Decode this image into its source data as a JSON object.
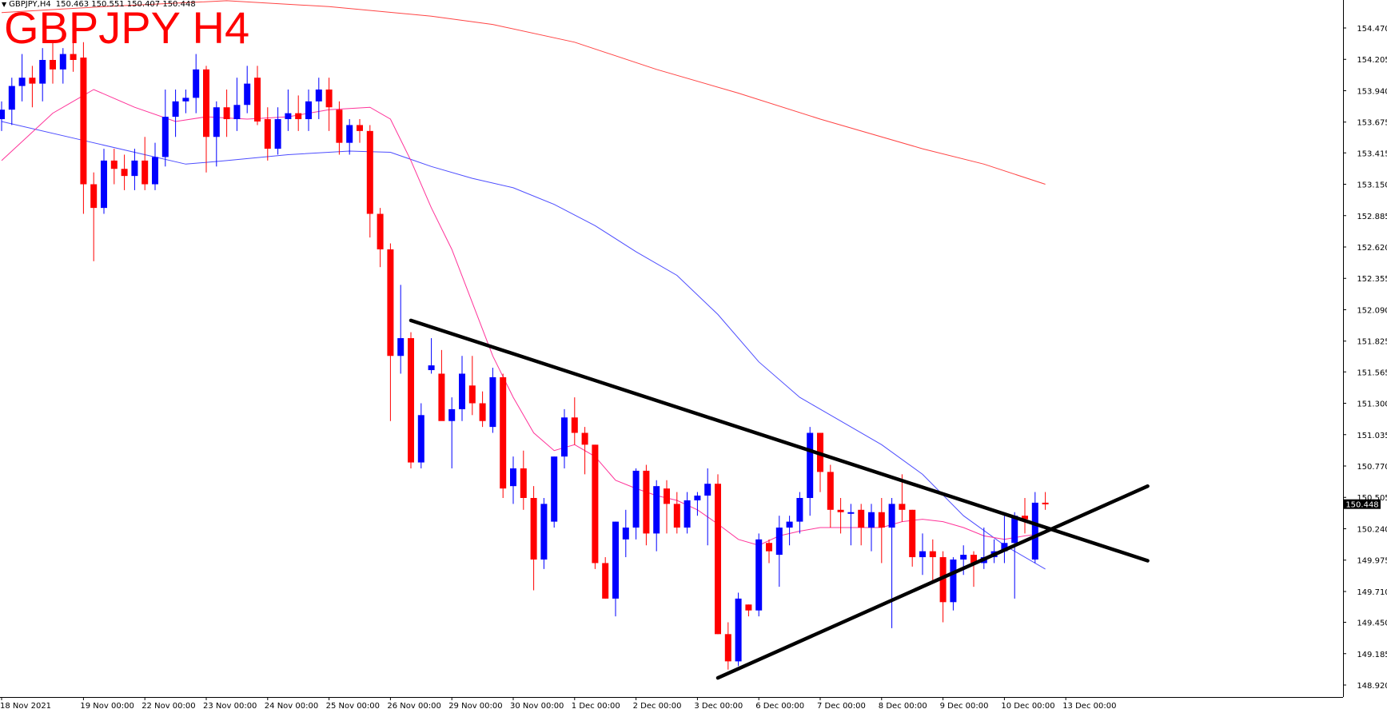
{
  "header": {
    "symbol_tf": "GBPJPY,H4",
    "ohlc": "150.463 150.551 150.407 150.448",
    "title": "GBPJPY H4"
  },
  "colors": {
    "bull": "#0000ff",
    "bear": "#ff0000",
    "ma_fast": "#ff3399",
    "ma_mid": "#4d4dff",
    "ma_slow": "#ff4444",
    "trendline": "#000000",
    "price_tag_bg": "#000000"
  },
  "chart_data": {
    "type": "candlestick",
    "title": "GBPJPY H4",
    "ylim": [
      148.8,
      154.6
    ],
    "current_price": "150.448",
    "y_ticks": [
      "154.470",
      "154.205",
      "153.940",
      "153.675",
      "153.415",
      "153.150",
      "152.885",
      "152.620",
      "152.355",
      "152.090",
      "151.825",
      "151.565",
      "151.300",
      "151.035",
      "150.770",
      "150.505",
      "150.240",
      "149.975",
      "149.710",
      "149.450",
      "149.185",
      "148.920"
    ],
    "x_ticks": [
      {
        "label": "18 Nov 2021",
        "bar": 0
      },
      {
        "label": "19 Nov 00:00",
        "bar": 8
      },
      {
        "label": "22 Nov 00:00",
        "bar": 14
      },
      {
        "label": "23 Nov 00:00",
        "bar": 20
      },
      {
        "label": "24 Nov 00:00",
        "bar": 26
      },
      {
        "label": "25 Nov 00:00",
        "bar": 32
      },
      {
        "label": "26 Nov 00:00",
        "bar": 38
      },
      {
        "label": "29 Nov 00:00",
        "bar": 44
      },
      {
        "label": "30 Nov 00:00",
        "bar": 50
      },
      {
        "label": "1 Dec 00:00",
        "bar": 56
      },
      {
        "label": "2 Dec 00:00",
        "bar": 62
      },
      {
        "label": "3 Dec 00:00",
        "bar": 68
      },
      {
        "label": "6 Dec 00:00",
        "bar": 74
      },
      {
        "label": "7 Dec 00:00",
        "bar": 80
      },
      {
        "label": "8 Dec 00:00",
        "bar": 86
      },
      {
        "label": "9 Dec 00:00",
        "bar": 92
      },
      {
        "label": "10 Dec 00:00",
        "bar": 98
      },
      {
        "label": "13 Dec 00:00",
        "bar": 104
      }
    ],
    "candles": [
      [
        153.7,
        153.85,
        153.6,
        153.78
      ],
      [
        153.78,
        154.05,
        153.65,
        153.98
      ],
      [
        153.98,
        154.25,
        153.85,
        154.05
      ],
      [
        154.05,
        154.15,
        153.8,
        154.0
      ],
      [
        154.0,
        154.3,
        153.85,
        154.2
      ],
      [
        154.2,
        154.35,
        154.0,
        154.12
      ],
      [
        154.12,
        154.3,
        154.0,
        154.25
      ],
      [
        154.25,
        154.4,
        154.1,
        154.2
      ],
      [
        154.22,
        154.35,
        152.9,
        153.15
      ],
      [
        153.15,
        153.25,
        152.5,
        152.95
      ],
      [
        152.95,
        153.45,
        152.9,
        153.35
      ],
      [
        153.35,
        153.45,
        153.15,
        153.28
      ],
      [
        153.28,
        153.4,
        153.1,
        153.22
      ],
      [
        153.22,
        153.45,
        153.1,
        153.35
      ],
      [
        153.35,
        153.55,
        153.1,
        153.15
      ],
      [
        153.15,
        153.5,
        153.1,
        153.38
      ],
      [
        153.38,
        153.95,
        153.3,
        153.72
      ],
      [
        153.72,
        153.95,
        153.55,
        153.85
      ],
      [
        153.85,
        153.95,
        153.75,
        153.88
      ],
      [
        153.88,
        154.25,
        153.75,
        154.12
      ],
      [
        154.12,
        154.15,
        153.25,
        153.55
      ],
      [
        153.55,
        153.85,
        153.3,
        153.8
      ],
      [
        153.8,
        153.95,
        153.55,
        153.7
      ],
      [
        153.7,
        154.05,
        153.6,
        153.82
      ],
      [
        153.82,
        154.15,
        153.75,
        154.0
      ],
      [
        154.05,
        154.15,
        153.65,
        153.68
      ],
      [
        153.7,
        153.8,
        153.35,
        153.45
      ],
      [
        153.45,
        153.8,
        153.4,
        153.7
      ],
      [
        153.7,
        153.95,
        153.6,
        153.75
      ],
      [
        153.75,
        153.9,
        153.6,
        153.7
      ],
      [
        153.7,
        153.95,
        153.6,
        153.85
      ],
      [
        153.85,
        154.05,
        153.7,
        153.95
      ],
      [
        153.95,
        154.05,
        153.6,
        153.8
      ],
      [
        153.78,
        153.85,
        153.4,
        153.5
      ],
      [
        153.5,
        153.7,
        153.4,
        153.65
      ],
      [
        153.65,
        153.7,
        153.5,
        153.6
      ],
      [
        153.6,
        153.65,
        152.7,
        152.9
      ],
      [
        152.9,
        152.95,
        152.45,
        152.6
      ],
      [
        152.6,
        152.65,
        151.15,
        151.7
      ],
      [
        151.7,
        152.3,
        151.55,
        151.85
      ],
      [
        151.85,
        151.9,
        150.75,
        150.8
      ],
      [
        150.8,
        151.3,
        150.75,
        151.2
      ],
      [
        151.58,
        151.85,
        151.55,
        151.62
      ],
      [
        151.55,
        151.75,
        151.2,
        151.15
      ],
      [
        151.15,
        151.35,
        150.75,
        151.25
      ],
      [
        151.25,
        151.7,
        151.15,
        151.55
      ],
      [
        151.45,
        151.7,
        151.2,
        151.3
      ],
      [
        151.3,
        151.4,
        151.1,
        151.15
      ],
      [
        151.1,
        151.6,
        151.05,
        151.52
      ],
      [
        151.52,
        151.55,
        150.5,
        150.58
      ],
      [
        150.6,
        150.85,
        150.45,
        150.75
      ],
      [
        150.75,
        150.9,
        150.4,
        150.5
      ],
      [
        150.5,
        150.6,
        149.72,
        149.98
      ],
      [
        149.98,
        150.5,
        149.9,
        150.45
      ],
      [
        150.3,
        150.85,
        150.25,
        150.85
      ],
      [
        150.85,
        151.25,
        150.75,
        151.18
      ],
      [
        151.18,
        151.35,
        150.95,
        151.05
      ],
      [
        151.05,
        151.1,
        150.7,
        150.95
      ],
      [
        150.95,
        150.95,
        149.9,
        149.95
      ],
      [
        149.95,
        150.0,
        149.65,
        149.65
      ],
      [
        149.65,
        150.3,
        149.5,
        150.3
      ],
      [
        150.15,
        150.4,
        150.0,
        150.25
      ],
      [
        150.25,
        150.75,
        150.15,
        150.73
      ],
      [
        150.73,
        150.78,
        150.1,
        150.2
      ],
      [
        150.2,
        150.65,
        150.05,
        150.6
      ],
      [
        150.58,
        150.65,
        150.2,
        150.45
      ],
      [
        150.45,
        150.55,
        150.2,
        150.25
      ],
      [
        150.25,
        150.55,
        150.2,
        150.48
      ],
      [
        150.48,
        150.55,
        150.35,
        150.52
      ],
      [
        150.52,
        150.75,
        150.1,
        150.62
      ],
      [
        150.62,
        150.7,
        149.35,
        149.35
      ],
      [
        149.35,
        149.45,
        149.05,
        149.12
      ],
      [
        149.12,
        149.7,
        149.08,
        149.65
      ],
      [
        149.6,
        149.6,
        149.5,
        149.55
      ],
      [
        149.55,
        150.2,
        149.5,
        150.15
      ],
      [
        150.12,
        150.15,
        149.95,
        150.05
      ],
      [
        150.02,
        150.35,
        149.75,
        150.25
      ],
      [
        150.25,
        150.35,
        150.1,
        150.3
      ],
      [
        150.3,
        150.55,
        150.2,
        150.5
      ],
      [
        150.5,
        151.1,
        150.35,
        151.05
      ],
      [
        151.05,
        151.05,
        150.55,
        150.72
      ],
      [
        150.72,
        150.78,
        150.25,
        150.4
      ],
      [
        150.4,
        150.5,
        150.2,
        150.38
      ],
      [
        150.38,
        150.45,
        150.1,
        150.38
      ],
      [
        150.4,
        150.45,
        150.1,
        150.25
      ],
      [
        150.25,
        150.45,
        150.05,
        150.38
      ],
      [
        150.38,
        150.5,
        149.95,
        150.25
      ],
      [
        150.25,
        150.5,
        149.4,
        150.45
      ],
      [
        150.45,
        150.7,
        150.3,
        150.4
      ],
      [
        150.4,
        150.4,
        149.92,
        150.0
      ],
      [
        150.0,
        150.2,
        149.85,
        150.05
      ],
      [
        150.05,
        150.15,
        149.8,
        150.0
      ],
      [
        150.0,
        150.05,
        149.45,
        149.62
      ],
      [
        149.62,
        150.0,
        149.55,
        149.98
      ],
      [
        149.98,
        150.1,
        149.85,
        150.02
      ],
      [
        150.02,
        150.05,
        149.75,
        149.95
      ],
      [
        149.95,
        150.25,
        149.9,
        150.0
      ],
      [
        150.0,
        150.15,
        149.95,
        150.05
      ],
      [
        150.05,
        150.35,
        149.95,
        150.12
      ],
      [
        150.12,
        150.38,
        149.65,
        150.35
      ],
      [
        150.35,
        150.5,
        150.2,
        150.32
      ],
      [
        149.98,
        150.55,
        149.95,
        150.46
      ],
      [
        150.46,
        150.55,
        150.4,
        150.448
      ]
    ],
    "ma_fast": [
      [
        0,
        153.35
      ],
      [
        5,
        153.75
      ],
      [
        9,
        153.95
      ],
      [
        13,
        153.8
      ],
      [
        17,
        153.68
      ],
      [
        20,
        153.72
      ],
      [
        24,
        153.7
      ],
      [
        28,
        153.72
      ],
      [
        32,
        153.78
      ],
      [
        36,
        153.8
      ],
      [
        38,
        153.7
      ],
      [
        40,
        153.35
      ],
      [
        42,
        152.95
      ],
      [
        44,
        152.6
      ],
      [
        46,
        152.15
      ],
      [
        48,
        151.7
      ],
      [
        50,
        151.35
      ],
      [
        52,
        151.05
      ],
      [
        54,
        150.9
      ],
      [
        56,
        150.95
      ],
      [
        58,
        150.85
      ],
      [
        60,
        150.65
      ],
      [
        62,
        150.58
      ],
      [
        64,
        150.52
      ],
      [
        66,
        150.48
      ],
      [
        68,
        150.4
      ],
      [
        70,
        150.28
      ],
      [
        72,
        150.15
      ],
      [
        74,
        150.1
      ],
      [
        76,
        150.18
      ],
      [
        78,
        150.22
      ],
      [
        80,
        150.25
      ],
      [
        82,
        150.25
      ],
      [
        84,
        150.25
      ],
      [
        86,
        150.25
      ],
      [
        88,
        150.3
      ],
      [
        90,
        150.32
      ],
      [
        92,
        150.3
      ],
      [
        94,
        150.25
      ],
      [
        96,
        150.18
      ],
      [
        98,
        150.15
      ],
      [
        100,
        150.18
      ],
      [
        102,
        150.2
      ]
    ],
    "ma_mid": [
      [
        0,
        153.68
      ],
      [
        8,
        153.52
      ],
      [
        14,
        153.4
      ],
      [
        18,
        153.32
      ],
      [
        22,
        153.35
      ],
      [
        28,
        153.4
      ],
      [
        34,
        153.43
      ],
      [
        38,
        153.42
      ],
      [
        42,
        153.3
      ],
      [
        46,
        153.2
      ],
      [
        50,
        153.12
      ],
      [
        54,
        152.98
      ],
      [
        58,
        152.8
      ],
      [
        62,
        152.58
      ],
      [
        66,
        152.38
      ],
      [
        70,
        152.05
      ],
      [
        74,
        151.65
      ],
      [
        78,
        151.35
      ],
      [
        82,
        151.15
      ],
      [
        86,
        150.95
      ],
      [
        90,
        150.7
      ],
      [
        94,
        150.35
      ],
      [
        98,
        150.1
      ],
      [
        102,
        149.9
      ]
    ],
    "ma_slow": [
      [
        0,
        154.6
      ],
      [
        10,
        154.65
      ],
      [
        22,
        154.7
      ],
      [
        32,
        154.65
      ],
      [
        42,
        154.57
      ],
      [
        48,
        154.5
      ],
      [
        56,
        154.35
      ],
      [
        64,
        154.12
      ],
      [
        72,
        153.92
      ],
      [
        80,
        153.7
      ],
      [
        90,
        153.45
      ],
      [
        96,
        153.32
      ],
      [
        102,
        153.15
      ]
    ],
    "trendlines": [
      {
        "from": [
          40,
          152.0
        ],
        "to": [
          112,
          149.97
        ]
      },
      {
        "from": [
          70,
          148.98
        ],
        "to": [
          112,
          150.6
        ]
      }
    ]
  }
}
